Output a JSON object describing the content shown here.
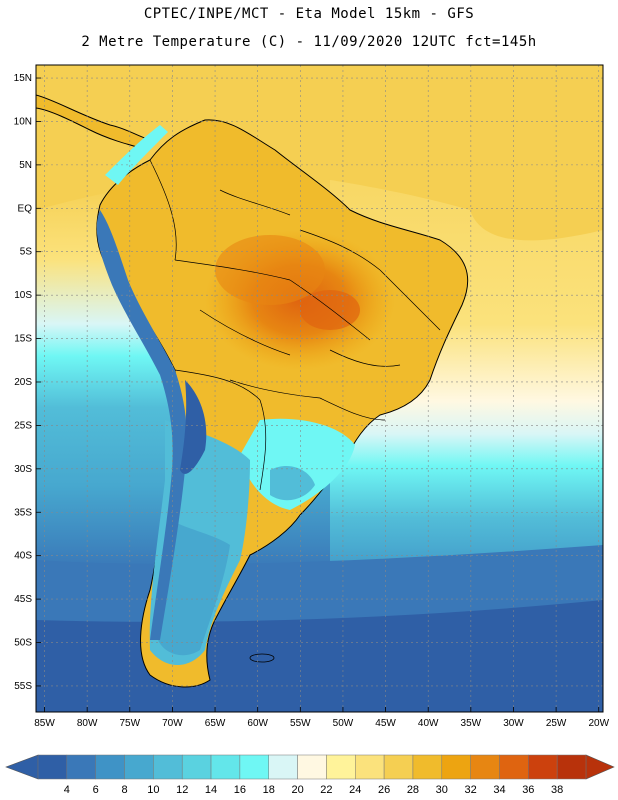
{
  "header": {
    "line1": "CPTEC/INPE/MCT -  Eta Model 15km - GFS",
    "line2": "2 Metre Temperature (C) - 11/09/2020 12UTC fct=145h"
  },
  "map": {
    "variable": "2 Metre Temperature",
    "units": "C",
    "lat_labels": [
      "15N",
      "10N",
      "5N",
      "EQ",
      "5S",
      "10S",
      "15S",
      "20S",
      "25S",
      "30S",
      "35S",
      "40S",
      "45S",
      "50S",
      "55S"
    ],
    "lon_labels": [
      "85W",
      "80W",
      "75W",
      "70W",
      "65W",
      "60W",
      "55W",
      "50W",
      "45W",
      "40W",
      "35W",
      "30W",
      "25W",
      "20W"
    ]
  },
  "colorbar": {
    "ticks": [
      "4",
      "6",
      "8",
      "10",
      "12",
      "14",
      "16",
      "18",
      "20",
      "22",
      "24",
      "26",
      "28",
      "30",
      "32",
      "34",
      "36",
      "38"
    ],
    "colors": [
      "#2f5fa6",
      "#3a78b8",
      "#3f93c6",
      "#47a8cf",
      "#52bdd8",
      "#5ad2e0",
      "#63e6ea",
      "#6ff7f4",
      "#d9f6f6",
      "#fff8e2",
      "#fff39a",
      "#fbe27c",
      "#f5cf52",
      "#f0bb2c",
      "#eda411",
      "#e78612",
      "#df6410",
      "#cc410d",
      "#b8320b"
    ],
    "min_color": "#2f5fa6",
    "max_color": "#b8320b"
  },
  "colors": {
    "ocean_south": "#2f5fa6",
    "ocean_mid": "#52bdd8",
    "land_warm": "#f0bb2c",
    "land_hot": "#e78612",
    "andes_cold": "#3a78b8"
  }
}
